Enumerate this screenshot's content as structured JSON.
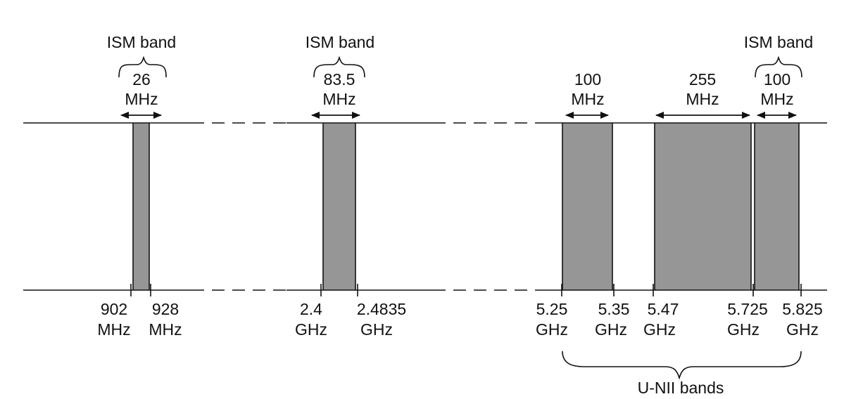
{
  "colors": {
    "band_fill": "#969696",
    "line": "#111111",
    "background": "#ffffff"
  },
  "ism_labels": [
    "ISM band",
    "ISM band",
    "ISM band"
  ],
  "bands": [
    {
      "width_value": "26",
      "width_unit": "MHz",
      "group": "ISM"
    },
    {
      "width_value": "83.5",
      "width_unit": "MHz",
      "group": "ISM"
    },
    {
      "width_value": "100",
      "width_unit": "MHz",
      "group": "U-NII"
    },
    {
      "width_value": "255",
      "width_unit": "MHz",
      "group": "U-NII"
    },
    {
      "width_value": "100",
      "width_unit": "MHz",
      "group": "ISM"
    }
  ],
  "frequency_labels": [
    {
      "value": "902",
      "unit": "MHz"
    },
    {
      "value": "928",
      "unit": "MHz"
    },
    {
      "value": "2.4",
      "unit": "GHz"
    },
    {
      "value": "2.4835",
      "unit": "GHz"
    },
    {
      "value": "5.25",
      "unit": "GHz"
    },
    {
      "value": "5.35",
      "unit": "GHz"
    },
    {
      "value": "5.47",
      "unit": "GHz"
    },
    {
      "value": "5.725",
      "unit": "GHz"
    },
    {
      "value": "5.825",
      "unit": "GHz"
    }
  ],
  "unii_label": "U-NII bands"
}
